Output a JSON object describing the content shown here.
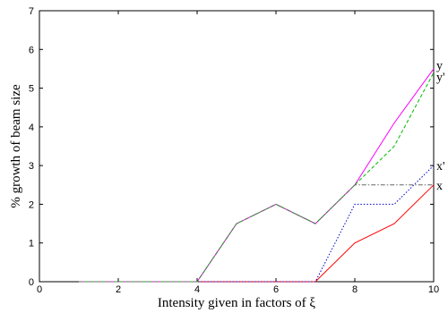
{
  "chart_data": {
    "type": "line",
    "xlabel": "Intensity given in factors of ξ",
    "ylabel": "% growth of beam size",
    "xlim": [
      0,
      10
    ],
    "ylim": [
      0,
      7
    ],
    "xticks": [
      0,
      2,
      4,
      6,
      8,
      10
    ],
    "yticks": [
      0,
      1,
      2,
      3,
      4,
      5,
      6,
      7
    ],
    "grid": false,
    "x": [
      1,
      2,
      3,
      4,
      5,
      6,
      7,
      8,
      9,
      10
    ],
    "series": [
      {
        "name": "x",
        "color": "#ff0000",
        "dash": "solid",
        "values": [
          0,
          0,
          0,
          0,
          0,
          0,
          0,
          1,
          1.5,
          2.5
        ]
      },
      {
        "name": "x'",
        "color": "#0000cc",
        "dash": "dotted",
        "values": [
          0,
          0,
          0,
          0,
          0,
          0,
          0,
          2,
          2,
          3
        ]
      },
      {
        "name": "y",
        "color": "#ff00ff",
        "dash": "solid",
        "values": [
          0,
          0,
          0,
          0,
          1.5,
          2,
          1.5,
          2.5,
          4.1,
          5.5
        ]
      },
      {
        "name": "y'",
        "color": "#00bb00",
        "dash": "dashed",
        "values": [
          0,
          0,
          0,
          0,
          1.5,
          2,
          1.5,
          2.5,
          3.5,
          5.4
        ]
      },
      {
        "name": "",
        "color": "#666666",
        "dash": "dashdot",
        "values": [
          0,
          0,
          0,
          0,
          1.5,
          2,
          1.5,
          2.5,
          2.5,
          2.5
        ]
      }
    ],
    "series_labels": [
      {
        "text": "y",
        "at": [
          10,
          5.6
        ]
      },
      {
        "text": "y'",
        "at": [
          10,
          5.3
        ]
      },
      {
        "text": "x'",
        "at": [
          10,
          3.0
        ]
      },
      {
        "text": "x",
        "at": [
          10,
          2.5
        ]
      }
    ]
  }
}
